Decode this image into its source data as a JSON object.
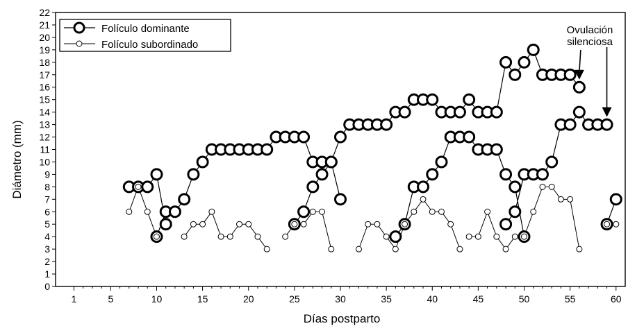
{
  "chart_data": {
    "type": "line",
    "title": "",
    "xlabel": "Días postparto",
    "ylabel": "Diámetro (mm)",
    "xlim": [
      -1,
      61
    ],
    "ylim": [
      0,
      22
    ],
    "x_ticks": [
      1,
      5,
      10,
      15,
      20,
      25,
      30,
      35,
      40,
      45,
      50,
      55,
      60
    ],
    "y_ticks": [
      0,
      1,
      2,
      3,
      4,
      5,
      6,
      7,
      8,
      9,
      10,
      11,
      12,
      13,
      14,
      15,
      16,
      17,
      18,
      19,
      20,
      21,
      22
    ],
    "grid": false,
    "legend_position": "top-left",
    "legend": [
      {
        "label": "Folículo dominante",
        "marker": "large-circle"
      },
      {
        "label": "Folículo subordinado",
        "marker": "small-circle"
      }
    ],
    "series": [
      {
        "name": "Folículo dominante",
        "marker": "large",
        "points": [
          [
            7,
            8
          ],
          [
            8,
            8
          ],
          [
            9,
            8
          ],
          [
            10,
            9
          ],
          [
            11,
            5
          ]
        ]
      },
      {
        "name": "Folículo dominante",
        "marker": "large",
        "points": [
          [
            10,
            4
          ],
          [
            11,
            6
          ],
          [
            12,
            6
          ],
          [
            13,
            7
          ],
          [
            14,
            9
          ],
          [
            15,
            10
          ],
          [
            16,
            11
          ],
          [
            17,
            11
          ],
          [
            18,
            11
          ],
          [
            19,
            11
          ],
          [
            20,
            11
          ],
          [
            21,
            11
          ],
          [
            22,
            11
          ],
          [
            23,
            12
          ],
          [
            24,
            12
          ],
          [
            25,
            12
          ],
          [
            26,
            12
          ],
          [
            27,
            10
          ],
          [
            28,
            10
          ],
          [
            29,
            10
          ],
          [
            30,
            12
          ],
          [
            31,
            13
          ],
          [
            32,
            13
          ],
          [
            33,
            13
          ],
          [
            34,
            13
          ],
          [
            35,
            13
          ],
          [
            36,
            14
          ],
          [
            37,
            14
          ],
          [
            38,
            15
          ],
          [
            39,
            15
          ],
          [
            40,
            15
          ],
          [
            41,
            14
          ],
          [
            42,
            14
          ],
          [
            43,
            14
          ],
          [
            44,
            15
          ],
          [
            45,
            14
          ],
          [
            46,
            14
          ],
          [
            47,
            14
          ],
          [
            48,
            18
          ],
          [
            49,
            17
          ],
          [
            50,
            18
          ],
          [
            51,
            19
          ],
          [
            52,
            17
          ],
          [
            53,
            17
          ],
          [
            54,
            17
          ],
          [
            55,
            17
          ],
          [
            56,
            16
          ]
        ]
      },
      {
        "name": "Folículo dominante",
        "marker": "large",
        "points": [
          [
            25,
            5
          ],
          [
            26,
            6
          ],
          [
            27,
            8
          ],
          [
            28,
            9
          ],
          [
            29,
            10
          ],
          [
            30,
            7
          ]
        ]
      },
      {
        "name": "Folículo dominante",
        "marker": "large",
        "points": [
          [
            36,
            4
          ],
          [
            37,
            5
          ],
          [
            38,
            8
          ],
          [
            39,
            8
          ],
          [
            40,
            9
          ],
          [
            41,
            10
          ],
          [
            42,
            12
          ],
          [
            43,
            12
          ],
          [
            44,
            12
          ],
          [
            45,
            11
          ],
          [
            46,
            11
          ],
          [
            47,
            11
          ],
          [
            48,
            9
          ],
          [
            49,
            8
          ],
          [
            50,
            4
          ]
        ]
      },
      {
        "name": "Folículo dominante",
        "marker": "large",
        "points": [
          [
            48,
            5
          ],
          [
            49,
            6
          ],
          [
            50,
            9
          ],
          [
            51,
            9
          ],
          [
            52,
            9
          ],
          [
            53,
            10
          ],
          [
            54,
            13
          ],
          [
            55,
            13
          ],
          [
            56,
            14
          ],
          [
            57,
            13
          ],
          [
            58,
            13
          ],
          [
            59,
            13
          ]
        ]
      },
      {
        "name": "Folículo dominante",
        "marker": "large",
        "points": [
          [
            59,
            5
          ],
          [
            60,
            7
          ]
        ]
      },
      {
        "name": "Folículo subordinado",
        "marker": "small",
        "points": [
          [
            7,
            6
          ],
          [
            8,
            8
          ],
          [
            9,
            6
          ],
          [
            10,
            4
          ]
        ]
      },
      {
        "name": "Folículo subordinado",
        "marker": "small",
        "points": [
          [
            13,
            4
          ],
          [
            14,
            5
          ],
          [
            15,
            5
          ],
          [
            16,
            6
          ],
          [
            17,
            4
          ],
          [
            18,
            4
          ],
          [
            19,
            5
          ],
          [
            20,
            5
          ],
          [
            21,
            4
          ],
          [
            22,
            3
          ]
        ]
      },
      {
        "name": "Folículo subordinado",
        "marker": "small",
        "points": [
          [
            24,
            4
          ],
          [
            25,
            5
          ],
          [
            26,
            5
          ],
          [
            27,
            6
          ],
          [
            28,
            6
          ],
          [
            29,
            3
          ]
        ]
      },
      {
        "name": "Folículo subordinado",
        "marker": "small",
        "points": [
          [
            32,
            3
          ],
          [
            33,
            5
          ],
          [
            34,
            5
          ],
          [
            35,
            4
          ],
          [
            36,
            3
          ],
          [
            37,
            5
          ],
          [
            38,
            6
          ],
          [
            39,
            7
          ],
          [
            40,
            6
          ],
          [
            41,
            6
          ],
          [
            42,
            5
          ],
          [
            43,
            3
          ]
        ]
      },
      {
        "name": "Folículo subordinado",
        "marker": "small",
        "points": [
          [
            44,
            4
          ],
          [
            45,
            4
          ],
          [
            46,
            6
          ],
          [
            47,
            4
          ],
          [
            48,
            3
          ],
          [
            49,
            4
          ],
          [
            50,
            4
          ],
          [
            51,
            6
          ],
          [
            52,
            8
          ],
          [
            53,
            8
          ],
          [
            54,
            7
          ],
          [
            55,
            7
          ],
          [
            56,
            3
          ]
        ]
      },
      {
        "name": "Folículo subordinado",
        "marker": "small",
        "points": [
          [
            59,
            5
          ],
          [
            60,
            5
          ]
        ]
      }
    ],
    "annotations": [
      {
        "text_lines": [
          "Ovulación",
          "silenciosa"
        ],
        "arrows_to": [
          [
            56,
            16
          ],
          [
            59,
            13
          ]
        ]
      }
    ]
  }
}
